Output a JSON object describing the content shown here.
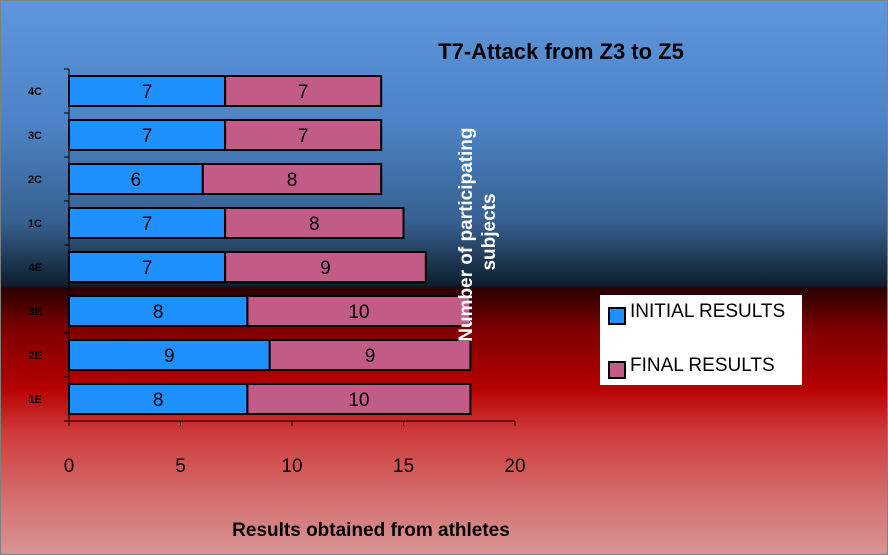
{
  "chart_data": {
    "type": "bar",
    "orientation": "horizontal",
    "stacked": true,
    "title": "T7-Attack from Z3 to Z5",
    "xlabel": "Results obtained from athletes",
    "ylabel": "Number of participating subjects",
    "categories": [
      "4C",
      "3C",
      "2C",
      "1C",
      "4E",
      "3E",
      "2E",
      "1E"
    ],
    "series": [
      {
        "name": "INITIAL RESULTS",
        "values": [
          7,
          7,
          6,
          7,
          7,
          8,
          9,
          8
        ],
        "color": "#1e90ff"
      },
      {
        "name": "FINAL RESULTS",
        "values": [
          7,
          7,
          8,
          8,
          9,
          10,
          9,
          10
        ],
        "color": "#c25b87"
      }
    ],
    "xlim": [
      0,
      20
    ],
    "xticks": [
      0,
      5,
      10,
      15,
      20
    ],
    "data_labels": true,
    "grid": false,
    "legend_position": "right"
  }
}
